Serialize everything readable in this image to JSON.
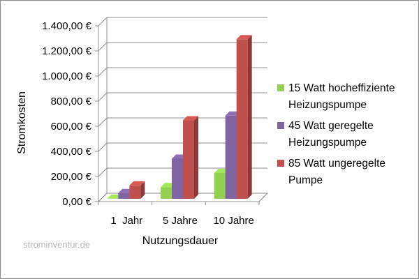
{
  "chart_data": {
    "type": "bar",
    "xlabel": "Nutzungsdauer",
    "ylabel": "Stromkosten",
    "categories": [
      "1  Jahr",
      "5 Jahre",
      "10 Jahre"
    ],
    "ylim": [
      0,
      1400
    ],
    "yticks": [
      "0,00 €",
      "200,00 €",
      "400,00 €",
      "600,00 €",
      "800,00 €",
      "1.000,00 €",
      "1.200,00 €",
      "1.400,00 €"
    ],
    "grid": true,
    "legend_position": "right",
    "series": [
      {
        "name_lines": [
          "15 Watt hocheffiziente",
          "Heizungspumpe"
        ],
        "color": "#92d050",
        "values": [
          23,
          115,
          228
        ]
      },
      {
        "name_lines": [
          "45 Watt geregelte",
          "Heizungspumpe"
        ],
        "color": "#8064a2",
        "values": [
          68,
          342,
          685
        ]
      },
      {
        "name_lines": [
          "85 Watt ungeregelte",
          "Pumpe"
        ],
        "color": "#c0504d",
        "values": [
          129,
          647,
          1293
        ]
      }
    ]
  },
  "watermark": "strominventur.de"
}
